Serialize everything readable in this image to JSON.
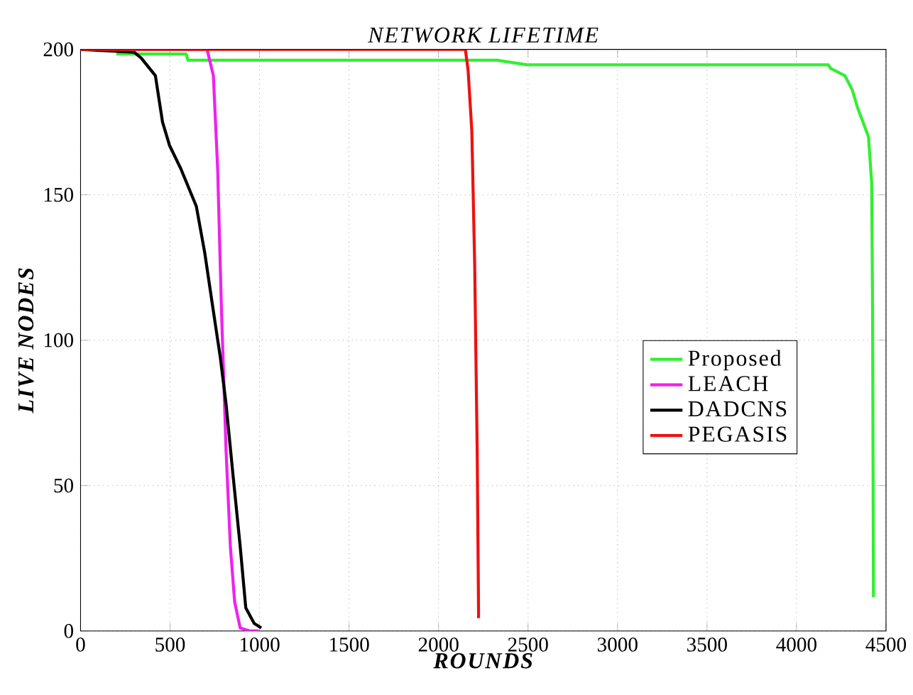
{
  "chart_data": {
    "type": "line",
    "title": "NETWORK LIFETIME",
    "xlabel": "ROUNDS",
    "ylabel": "LIVE NODES",
    "xlim": [
      0,
      4500
    ],
    "ylim": [
      0,
      200
    ],
    "xticks": [
      0,
      500,
      1000,
      1500,
      2000,
      2500,
      3000,
      3500,
      4000,
      4500
    ],
    "yticks": [
      0,
      50,
      100,
      150,
      200
    ],
    "grid": true,
    "legend": "right",
    "marker": "none",
    "line_style": "solid",
    "series": [
      {
        "name": "Proposed",
        "color": "#33ee33",
        "x": [
          200,
          590,
          600,
          2326,
          2495,
          4178,
          4190,
          4270,
          4312,
          4341,
          4402,
          4420,
          4425,
          4430
        ],
        "values": [
          198.4,
          198.4,
          196.3,
          196.3,
          194.7,
          194.7,
          193.5,
          191,
          186,
          180,
          170,
          154,
          110,
          11.6
        ]
      },
      {
        "name": "LEACH",
        "color": "#ee22ee",
        "x": [
          0,
          707,
          742,
          766,
          787,
          813,
          837,
          861,
          892,
          947,
          995
        ],
        "values": [
          200,
          200,
          191,
          159,
          111,
          62,
          29,
          10,
          1,
          0,
          0
        ]
      },
      {
        "name": "DADCNS",
        "color": "#000000",
        "x": [
          0,
          300,
          339,
          418,
          458,
          497,
          560,
          647,
          694,
          742,
          781,
          813,
          852,
          892,
          923,
          970,
          1010
        ],
        "values": [
          200,
          199,
          197,
          191,
          175,
          167,
          159,
          146,
          130,
          110,
          94,
          78,
          53.5,
          29,
          8,
          2.6,
          1
        ]
      },
      {
        "name": "PEGASIS",
        "color": "#ee1111",
        "x": [
          0,
          2150,
          2165,
          2186,
          2202,
          2216,
          2224
        ],
        "values": [
          200,
          200,
          193,
          172,
          126,
          62,
          4.4
        ]
      }
    ]
  }
}
